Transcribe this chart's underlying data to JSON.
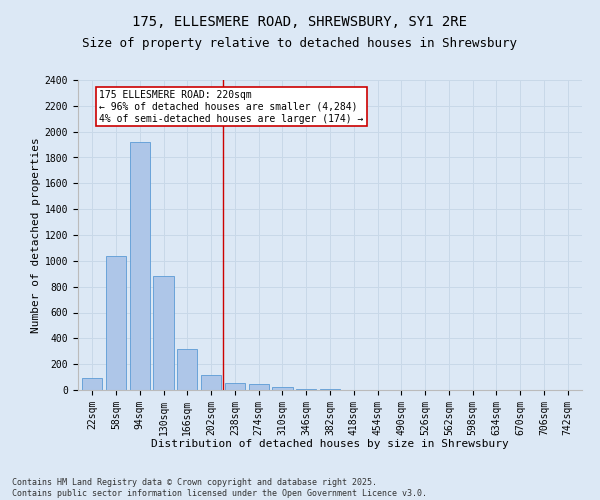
{
  "title_line1": "175, ELLESMERE ROAD, SHREWSBURY, SY1 2RE",
  "title_line2": "Size of property relative to detached houses in Shrewsbury",
  "xlabel": "Distribution of detached houses by size in Shrewsbury",
  "ylabel": "Number of detached properties",
  "categories": [
    "22sqm",
    "58sqm",
    "94sqm",
    "130sqm",
    "166sqm",
    "202sqm",
    "238sqm",
    "274sqm",
    "310sqm",
    "346sqm",
    "382sqm",
    "418sqm",
    "454sqm",
    "490sqm",
    "526sqm",
    "562sqm",
    "598sqm",
    "634sqm",
    "670sqm",
    "706sqm",
    "742sqm"
  ],
  "values": [
    90,
    1035,
    1920,
    880,
    315,
    115,
    55,
    45,
    20,
    10,
    5,
    0,
    0,
    0,
    0,
    0,
    0,
    0,
    0,
    0,
    0
  ],
  "bar_color": "#aec6e8",
  "bar_edge_color": "#5b9bd5",
  "vline_x": 5.5,
  "vline_color": "#cc0000",
  "annotation_text": "175 ELLESMERE ROAD: 220sqm\n← 96% of detached houses are smaller (4,284)\n4% of semi-detached houses are larger (174) →",
  "annotation_box_color": "#ffffff",
  "annotation_box_edge": "#cc0000",
  "ylim": [
    0,
    2400
  ],
  "yticks": [
    0,
    200,
    400,
    600,
    800,
    1000,
    1200,
    1400,
    1600,
    1800,
    2000,
    2200,
    2400
  ],
  "grid_color": "#c8d8e8",
  "background_color": "#dce8f5",
  "plot_bg_color": "#dce8f5",
  "footer_line1": "Contains HM Land Registry data © Crown copyright and database right 2025.",
  "footer_line2": "Contains public sector information licensed under the Open Government Licence v3.0.",
  "title_fontsize": 10,
  "subtitle_fontsize": 9,
  "tick_fontsize": 7,
  "label_fontsize": 8,
  "annotation_fontsize": 7,
  "footer_fontsize": 6
}
